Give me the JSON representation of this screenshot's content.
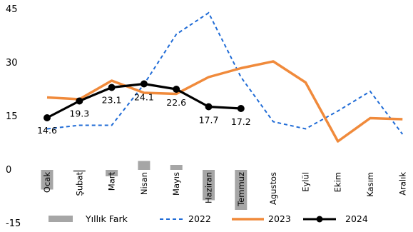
{
  "chart_data": {
    "type": "line",
    "categories": [
      "Ocak",
      "Şubat",
      "Mart",
      "Nisan",
      "Mayıs",
      "Haziran",
      "Temmuz",
      "Agustos",
      "Eylül",
      "Ekim",
      "Kasım",
      "Aralık"
    ],
    "ylim": [
      -15,
      45
    ],
    "yticks": [
      -15,
      0,
      15,
      30,
      45
    ],
    "grid": false,
    "legend_position": "bottom",
    "series": [
      {
        "name": "Yıllık Fark",
        "kind": "bar",
        "color": "#a6a6a6",
        "values": [
          -5.5,
          -0.6,
          -1.8,
          2.5,
          1.4,
          -8.5,
          -11.2,
          null,
          null,
          null,
          null,
          null
        ]
      },
      {
        "name": "2022",
        "kind": "line",
        "style": "dashed",
        "color": "#1f6bd6",
        "values": [
          11.5,
          12.5,
          12.5,
          24.0,
          38.0,
          44.0,
          26.0,
          13.5,
          11.5,
          16.5,
          22.0,
          10.0
        ]
      },
      {
        "name": "2023",
        "kind": "line",
        "style": "solid",
        "color": "#f08a3b",
        "values": [
          20.3,
          19.8,
          25.0,
          21.6,
          21.3,
          26.0,
          28.5,
          30.4,
          24.5,
          8.0,
          14.5,
          14.2
        ]
      },
      {
        "name": "2024",
        "kind": "line",
        "style": "solid-markers",
        "color": "#000000",
        "values": [
          14.6,
          19.3,
          23.1,
          24.1,
          22.6,
          17.7,
          17.2,
          null,
          null,
          null,
          null,
          null
        ]
      }
    ],
    "data_labels": [
      "14.6",
      "19.3",
      "23.1",
      "24.1",
      "22.6",
      "17.7",
      "17.2"
    ]
  }
}
